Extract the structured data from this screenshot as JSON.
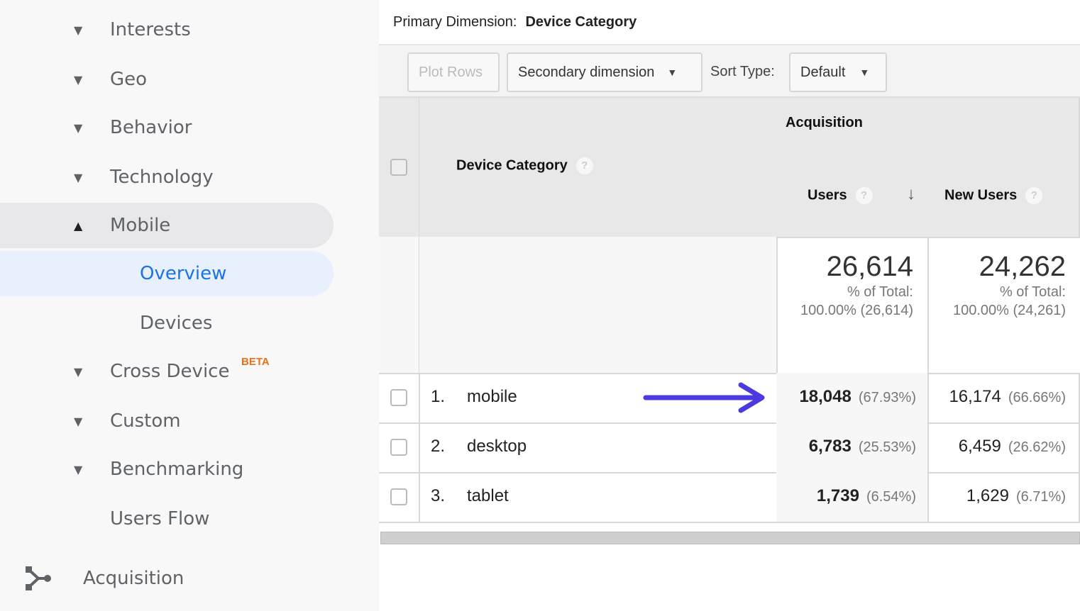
{
  "sidebar": {
    "items": [
      {
        "label": "Interests",
        "expand": "collapsed"
      },
      {
        "label": "Geo",
        "expand": "collapsed"
      },
      {
        "label": "Behavior",
        "expand": "collapsed"
      },
      {
        "label": "Technology",
        "expand": "collapsed"
      },
      {
        "label": "Mobile",
        "expand": "expanded"
      },
      {
        "label": "Overview",
        "active": true
      },
      {
        "label": "Devices"
      },
      {
        "label": "Cross Device",
        "badge": "BETA",
        "expand": "collapsed"
      },
      {
        "label": "Custom",
        "expand": "collapsed"
      },
      {
        "label": "Benchmarking",
        "expand": "collapsed"
      },
      {
        "label": "Users Flow"
      },
      {
        "label": "Acquisition",
        "icon": "acquisition-icon"
      }
    ]
  },
  "header": {
    "primary_label": "Primary Dimension:",
    "primary_value": "Device Category"
  },
  "toolbar": {
    "plot_rows": "Plot Rows",
    "secondary": "Secondary dimension",
    "sort_label": "Sort Type:",
    "sort_value": "Default"
  },
  "table": {
    "col_dimension": "Device Category",
    "group": "Acquisition",
    "col_users": "Users",
    "col_new_users": "New Users",
    "totals": {
      "users": "26,614",
      "users_pct_label": "% of Total:",
      "users_pct": "100.00% (26,614)",
      "new_users": "24,262",
      "new_users_pct_label": "% of Total:",
      "new_users_pct": "100.00% (24,261)"
    },
    "rows": [
      {
        "index": "1.",
        "name": "mobile",
        "users": "18,048",
        "users_pct": "(67.93%)",
        "new_users": "16,174",
        "new_users_pct": "(66.66%)"
      },
      {
        "index": "2.",
        "name": "desktop",
        "users": "6,783",
        "users_pct": "(25.53%)",
        "new_users": "6,459",
        "new_users_pct": "(26.62%)"
      },
      {
        "index": "3.",
        "name": "tablet",
        "users": "1,739",
        "users_pct": "(6.54%)",
        "new_users": "1,629",
        "new_users_pct": "(6.71%)"
      }
    ]
  },
  "colors": {
    "accent": "#1a73e8",
    "beta": "#e8711a",
    "arrow": "#4b3ae0"
  }
}
